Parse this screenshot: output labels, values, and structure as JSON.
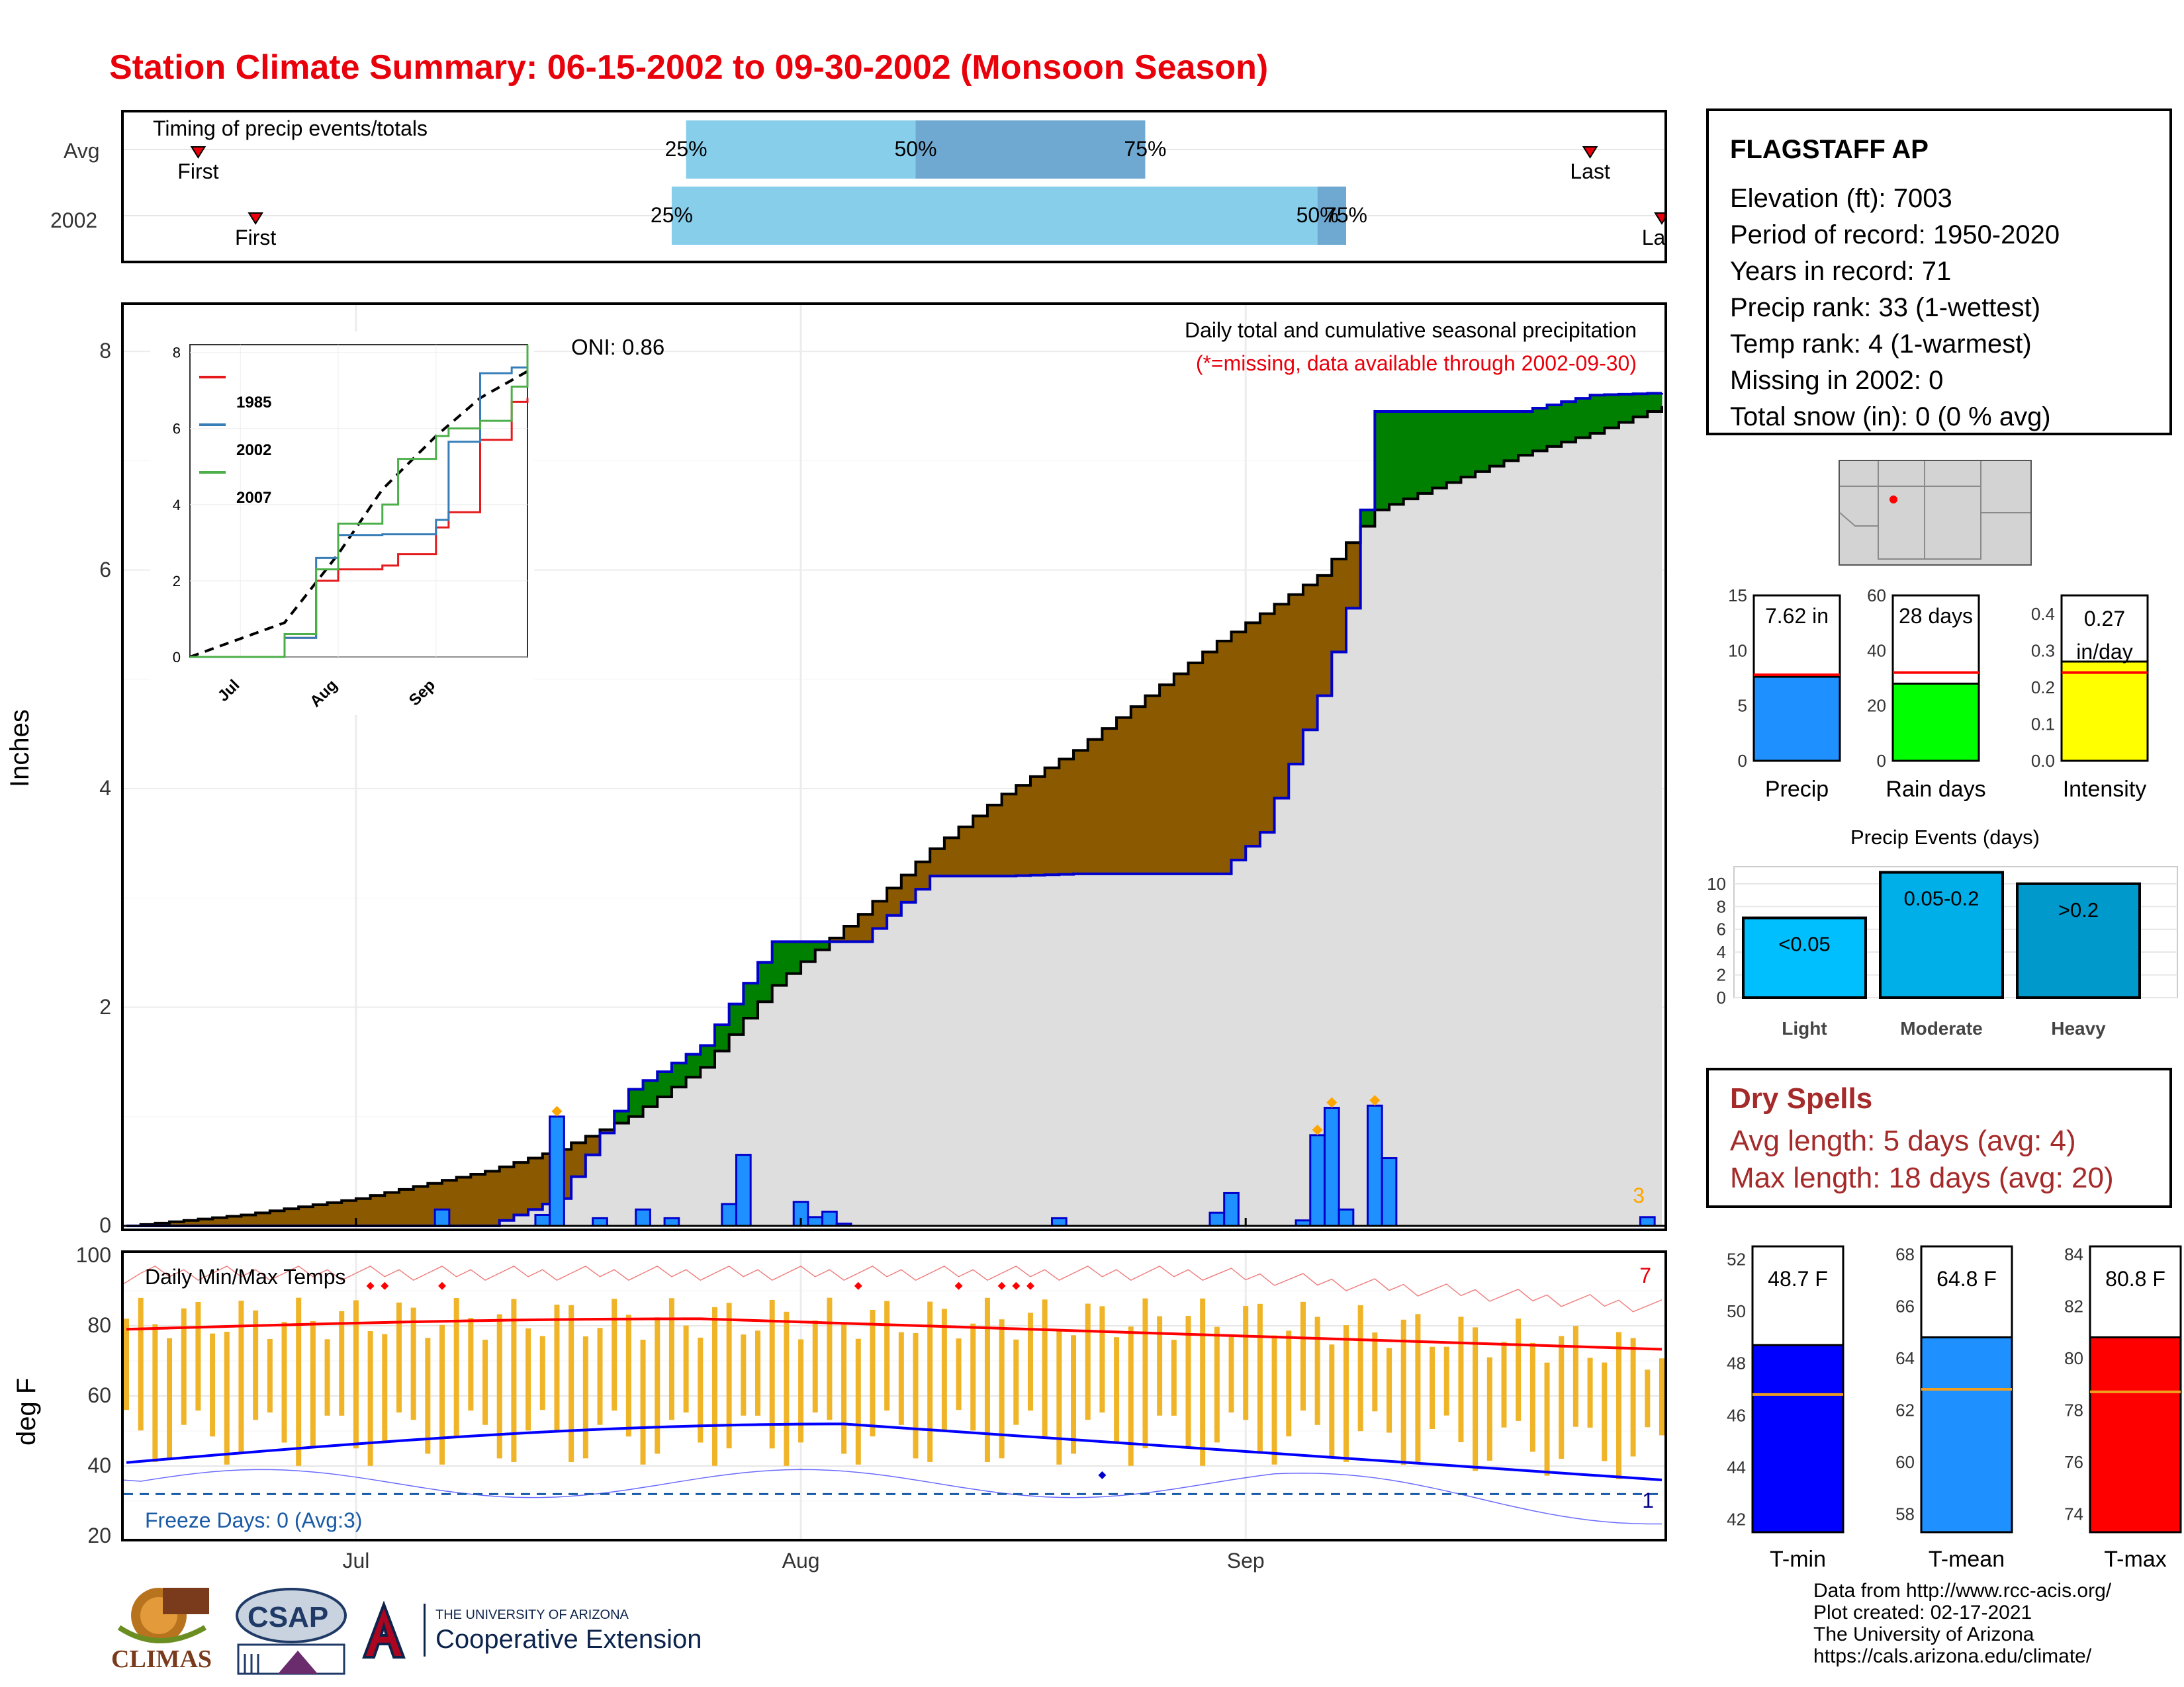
{
  "title": "Station Climate Summary: 06-15-2002 to 09-30-2002 (Monsoon Season)",
  "timing": {
    "label": "Timing of precip events/totals",
    "rows": [
      {
        "name": "Avg",
        "first": "Jun 20",
        "q25": "Jul 24",
        "q50": "Aug 9",
        "q75": "Aug 25",
        "last": "Sep 25"
      },
      {
        "name": "2002",
        "first": "Jun 24",
        "q25": "Jul 23",
        "q50": "Sep 6",
        "q75": "Sep 8",
        "last": "Sep 30"
      }
    ],
    "first_label": "First",
    "last_label": "Last",
    "p25": "25%",
    "p50": "50%",
    "p75": "75%"
  },
  "main": {
    "ylabel": "Inches",
    "annotation_title": "Daily total and cumulative seasonal precipitation",
    "annotation_missing": "(*=missing, data available through 2002-09-30)",
    "oni": "ONI: 0.86",
    "count_label": "3",
    "y_ticks": [
      "0",
      "2",
      "4",
      "6",
      "8"
    ],
    "x_ticks": [
      "Jul",
      "Aug",
      "Sep"
    ]
  },
  "inset": {
    "y_ticks": [
      "0",
      "2",
      "4",
      "6",
      "8"
    ],
    "x_ticks": [
      "Jul",
      "Aug",
      "Sep"
    ],
    "legend": [
      {
        "name": "1985",
        "color": "#e41a1c"
      },
      {
        "name": "2002",
        "color": "#377eb8"
      },
      {
        "name": "2007",
        "color": "#4daf4a"
      }
    ]
  },
  "temps": {
    "label": "Daily Min/Max Temps",
    "ylabel": "deg F",
    "freeze": "Freeze Days: 0 (Avg:3)",
    "red_count": "7",
    "blue_count": "1",
    "y_ticks": [
      "20",
      "40",
      "60",
      "80",
      "100"
    ],
    "x_ticks": [
      "Jul",
      "Aug",
      "Sep"
    ]
  },
  "station": {
    "name": "FLAGSTAFF AP",
    "lines": [
      "Elevation (ft): 7003",
      "Period of record: 1950-2020",
      "Years in record: 71",
      "Precip rank: 33 (1-wettest)",
      "Temp rank: 4 (1-warmest)",
      "Missing in 2002: 0",
      "Total snow (in): 0 (0 % avg)"
    ]
  },
  "mini_bars": [
    {
      "name": "Precip",
      "value_label": "7.62 in",
      "value": 7.62,
      "avg": 7.8,
      "ymax": 15,
      "ticks": [
        "0",
        "5",
        "10",
        "15"
      ],
      "color": "#1e90ff"
    },
    {
      "name": "Rain days",
      "value_label": "28 days",
      "value": 28,
      "avg": 32,
      "ymax": 60,
      "ticks": [
        "0",
        "20",
        "40",
        "60"
      ],
      "color": "#00ff00"
    },
    {
      "name": "Intensity",
      "value_label": "0.27 in/day",
      "value": 0.27,
      "avg": 0.24,
      "ymax": 0.45,
      "ticks": [
        "0.0",
        "0.1",
        "0.2",
        "0.3",
        "0.4"
      ],
      "color": "#ffff00"
    }
  ],
  "events": {
    "title": "Precip Events (days)",
    "ticks": [
      "0",
      "2",
      "4",
      "6",
      "8",
      "10"
    ],
    "bars": [
      {
        "name": "Light",
        "range": "<0.05",
        "value": 7,
        "color": "#00bfff"
      },
      {
        "name": "Moderate",
        "range": "0.05-0.2",
        "value": 11,
        "color": "#00aee8"
      },
      {
        "name": "Heavy",
        "range": ">0.2",
        "value": 10,
        "color": "#0099cc"
      }
    ]
  },
  "dry_spells": {
    "title": "Dry Spells",
    "avg": "Avg length: 5 days (avg: 4)",
    "max": "Max length: 18 days (avg: 20)"
  },
  "temp_bars": [
    {
      "name": "T-min",
      "value_label": "48.7 F",
      "value": 48.7,
      "avg": 46.8,
      "ymin": 41.5,
      "ymax": 52.5,
      "ticks": [
        "42",
        "44",
        "46",
        "48",
        "50",
        "52"
      ],
      "color": "#0000ff"
    },
    {
      "name": "T-mean",
      "value_label": "64.8 F",
      "value": 64.8,
      "avg": 62.8,
      "ymin": 57.3,
      "ymax": 68.3,
      "ticks": [
        "58",
        "60",
        "62",
        "64",
        "66",
        "68"
      ],
      "color": "#1e90ff"
    },
    {
      "name": "T-max",
      "value_label": "80.8 F",
      "value": 80.8,
      "avg": 78.7,
      "ymin": 73.3,
      "ymax": 84.3,
      "ticks": [
        "74",
        "76",
        "78",
        "80",
        "82",
        "84"
      ],
      "color": "#ff0000"
    }
  ],
  "footer": {
    "lines": [
      "Data from http://www.rcc-acis.org/",
      "Plot created: 02-17-2021",
      "The University of Arizona",
      "https://cals.arizona.edu/climate/"
    ],
    "climas": "CLIMAS",
    "csap": "CSAP",
    "ua_small": "THE UNIVERSITY OF ARIZONA",
    "ua_big": "Cooperative Extension"
  },
  "chart_data": [
    {
      "type": "area",
      "title": "Daily total and cumulative seasonal precipitation",
      "ylabel": "Inches",
      "ylim": [
        0,
        8.4
      ],
      "x_range": [
        "2002-06-15",
        "2002-09-30"
      ],
      "series": [
        {
          "name": "2002",
          "x": [
            "06-15",
            "06-23",
            "07-01",
            "07-10",
            "07-15",
            "07-20",
            "07-25",
            "07-30",
            "08-05",
            "08-10",
            "08-15",
            "08-20",
            "08-25",
            "08-30",
            "09-02",
            "09-06",
            "09-08",
            "09-10",
            "09-15",
            "09-20",
            "09-25",
            "09-30"
          ],
          "values": [
            0,
            0,
            0,
            0,
            0.25,
            1.25,
            1.65,
            2.6,
            2.6,
            3.2,
            3.2,
            3.22,
            3.22,
            3.22,
            3.6,
            4.85,
            5.65,
            7.45,
            7.45,
            7.45,
            7.6,
            7.62
          ]
        },
        {
          "values": [
            0,
            0.1,
            0.25,
            0.5,
            0.7,
            1.0,
            1.45,
            2.2,
            2.85,
            3.45,
            3.95,
            4.35,
            4.85,
            5.35,
            5.6,
            5.95,
            6.25,
            6.55,
            6.8,
            7.05,
            7.25,
            7.5
          ]
        }
      ],
      "daily": [
        {
          "x": "07-07",
          "value": 0.15
        },
        {
          "x": "07-14",
          "value": 0.1
        },
        {
          "x": "07-15",
          "value": 1.0
        },
        {
          "x": "07-18",
          "value": 0.07
        },
        {
          "x": "07-21",
          "value": 0.15
        },
        {
          "x": "07-23",
          "value": 0.07
        },
        {
          "x": "07-27",
          "value": 0.2
        },
        {
          "x": "07-28",
          "value": 0.65
        },
        {
          "x": "08-01",
          "value": 0.22
        },
        {
          "x": "08-02",
          "value": 0.08
        },
        {
          "x": "08-03",
          "value": 0.13
        },
        {
          "x": "08-04",
          "value": 0.02
        },
        {
          "x": "08-19",
          "value": 0.07
        },
        {
          "x": "08-30",
          "value": 0.12
        },
        {
          "x": "08-31",
          "value": 0.3
        },
        {
          "x": "09-05",
          "value": 0.05
        },
        {
          "x": "09-06",
          "value": 0.83
        },
        {
          "x": "09-07",
          "value": 1.08
        },
        {
          "x": "09-08",
          "value": 0.15
        },
        {
          "x": "09-10",
          "value": 1.1
        },
        {
          "x": "09-11",
          "value": 0.62
        },
        {
          "x": "09-29",
          "value": 0.08
        }
      ]
    },
    {
      "type": "line",
      "series": [
        {
          "name": "1985",
          "x": [
            "06-15",
            "07-08",
            "07-15",
            "07-25",
            "08-01",
            "08-15",
            "08-20",
            "09-01",
            "09-05",
            "09-15",
            "09-25",
            "09-30"
          ],
          "values": [
            0,
            0,
            0.5,
            2.0,
            2.3,
            2.4,
            2.7,
            3.4,
            3.8,
            5.7,
            6.7,
            6.8
          ]
        },
        {
          "name": "2002",
          "x": [
            "06-15",
            "07-08",
            "07-15",
            "07-25",
            "08-01",
            "08-15",
            "08-20",
            "09-01",
            "09-05",
            "09-15",
            "09-25",
            "09-30"
          ],
          "values": [
            0,
            0,
            0.5,
            2.6,
            3.2,
            3.22,
            3.22,
            3.6,
            5.65,
            7.45,
            7.6,
            7.62
          ]
        },
        {
          "name": "2007",
          "x": [
            "06-15",
            "07-08",
            "07-15",
            "07-25",
            "08-01",
            "08-15",
            "08-20",
            "09-01",
            "09-05",
            "09-15",
            "09-25",
            "09-30"
          ],
          "values": [
            0,
            0,
            0.6,
            2.3,
            3.5,
            4.0,
            5.2,
            5.8,
            6.0,
            6.2,
            7.1,
            8.2
          ]
        }
      ]
    },
    {
      "type": "bar",
      "title": "Daily Min/Max Temps",
      "ylabel": "deg F",
      "ylim": [
        20,
        100
      ]
    }
  ]
}
